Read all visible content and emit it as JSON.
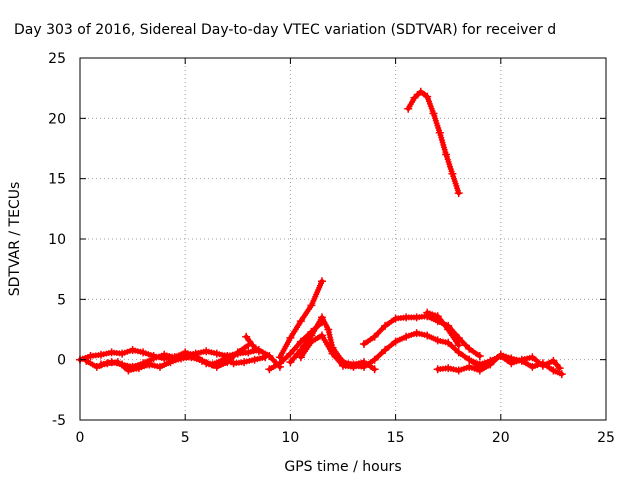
{
  "chart_data": {
    "type": "scatter",
    "title": "Day 303 of 2016, Sidereal Day-to-day VTEC variation (SDTVAR) for receiver d",
    "xlabel": "GPS time / hours",
    "ylabel": "SDTVAR / TECUs",
    "xlim": [
      0,
      25
    ],
    "ylim": [
      -5,
      25
    ],
    "xticks": [
      "0",
      "5",
      "10",
      "15",
      "20",
      "25"
    ],
    "yticks": [
      "-5",
      "0",
      "5",
      "10",
      "15",
      "20",
      "25"
    ],
    "grid": true,
    "legend": "none",
    "marker": "plus",
    "color": "#ff0000",
    "series": [
      {
        "x": [
          0,
          0.5,
          1,
          1.5,
          2,
          2.5,
          3,
          3.5,
          4,
          4.5,
          5,
          5.5,
          6,
          6.5,
          7,
          7.5,
          8,
          8.5,
          9,
          9.5
        ],
        "y": [
          0.0,
          0.3,
          0.4,
          0.6,
          0.5,
          0.8,
          0.6,
          0.3,
          0.1,
          0.2,
          0.4,
          0.5,
          0.7,
          0.5,
          0.3,
          0.5,
          0.6,
          0.8,
          0.3,
          -0.6
        ]
      },
      {
        "x": [
          0.3,
          0.8,
          1.3,
          1.8,
          2.3,
          2.8,
          3.3,
          3.8,
          4.3,
          4.8,
          5.3,
          5.8,
          6.3,
          6.8,
          7.3,
          7.8,
          8.3,
          8.8
        ],
        "y": [
          -0.1,
          -0.6,
          -0.3,
          -0.2,
          -0.9,
          -0.7,
          -0.4,
          -0.6,
          -0.2,
          0.1,
          0.2,
          -0.1,
          -0.4,
          0.0,
          -0.3,
          -0.2,
          0.0,
          0.2
        ]
      },
      {
        "x": [
          1.0,
          1.5,
          2.0,
          2.5,
          3.0,
          3.5,
          4.0,
          4.5,
          5.0,
          5.5,
          6.0,
          6.5,
          7.0,
          7.5,
          8.0
        ],
        "y": [
          -0.4,
          -0.2,
          -0.4,
          -0.6,
          -0.3,
          0.1,
          0.4,
          0.2,
          0.6,
          0.3,
          -0.3,
          -0.6,
          -0.2,
          0.6,
          1.2
        ]
      },
      {
        "x": [
          7.9,
          8.2,
          8.5
        ],
        "y": [
          1.9,
          1.2,
          0.7
        ]
      },
      {
        "x": [
          9.0,
          9.5,
          10.0,
          10.5,
          11.0,
          11.5
        ],
        "y": [
          -0.8,
          -0.3,
          0.5,
          1.5,
          2.3,
          3.1
        ]
      },
      {
        "x": [
          9.5,
          10.0,
          10.5,
          11.0,
          11.5
        ],
        "y": [
          0.2,
          1.8,
          3.2,
          4.5,
          6.5
        ]
      },
      {
        "x": [
          10.0,
          10.5,
          11.0,
          11.5,
          11.8,
          12.0,
          12.5,
          13.0,
          13.5,
          14.0
        ],
        "y": [
          -0.2,
          0.8,
          2.0,
          3.5,
          2.5,
          1.0,
          -0.2,
          -0.4,
          -0.2,
          -0.8
        ]
      },
      {
        "x": [
          10.5,
          11.0,
          11.5,
          12.0,
          12.5,
          13.0,
          13.5
        ],
        "y": [
          0.2,
          1.5,
          2.0,
          0.5,
          -0.5,
          -0.6,
          -0.4
        ]
      },
      {
        "x": [
          13.5,
          14.0,
          14.5,
          15.0,
          15.5,
          16.0,
          16.5,
          17.0,
          17.5,
          18.0,
          18.5,
          19.0
        ],
        "y": [
          1.3,
          1.9,
          2.8,
          3.4,
          3.5,
          3.5,
          3.6,
          3.2,
          2.8,
          1.8,
          0.9,
          0.3
        ]
      },
      {
        "x": [
          13.0,
          13.5,
          14.0,
          14.5,
          15.0,
          15.5,
          16.0,
          16.5,
          17.0,
          17.5,
          18.0,
          18.5,
          19.0,
          19.5
        ],
        "y": [
          -0.5,
          -0.6,
          0.0,
          0.8,
          1.5,
          1.9,
          2.2,
          2.0,
          1.6,
          1.4,
          0.6,
          0.0,
          -0.6,
          -0.3
        ]
      },
      {
        "x": [
          16.5,
          17.0,
          17.5,
          18.0
        ],
        "y": [
          3.9,
          3.6,
          2.5,
          1.2
        ]
      },
      {
        "x": [
          17.0,
          17.5,
          18.0,
          18.5,
          19.0,
          19.5,
          20.0,
          20.5,
          21.0,
          21.5,
          22.0,
          22.5,
          22.9
        ],
        "y": [
          -0.8,
          -0.7,
          -0.9,
          -0.6,
          -0.9,
          -0.4,
          0.4,
          0.1,
          -0.1,
          -0.6,
          -0.3,
          -0.9,
          -1.2
        ]
      },
      {
        "x": [
          18.5,
          19.0,
          19.5,
          20.0,
          20.5,
          21.0,
          21.5,
          22.0,
          22.5,
          22.8
        ],
        "y": [
          0.0,
          -0.4,
          -0.1,
          0.3,
          -0.3,
          0.0,
          0.2,
          -0.5,
          -0.1,
          -0.7
        ]
      },
      {
        "x": [
          15.6,
          15.9,
          16.2,
          16.5,
          16.8,
          17.1,
          17.4,
          17.7,
          18.0
        ],
        "y": [
          20.8,
          21.7,
          22.2,
          21.8,
          20.4,
          18.8,
          17.0,
          15.4,
          13.8
        ]
      }
    ]
  }
}
